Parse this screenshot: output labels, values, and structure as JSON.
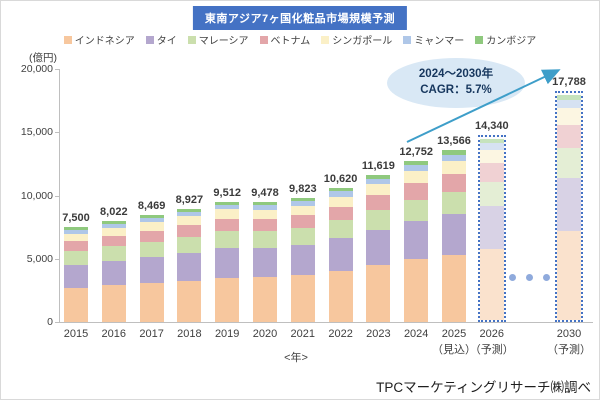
{
  "title": "東南アジア7ヶ国化粧品市場規模予測",
  "y_unit_label": "(億円)",
  "x_axis_title": "<年>",
  "footer_source": "TPCマーケティングリサーチ㈱調べ",
  "annotation": {
    "line1": "2024～2030年",
    "line2": "CAGR：5.7%"
  },
  "colors": {
    "title_bg": "#4472C4",
    "annotation_bg": "#D9E8F5",
    "annotation_text": "#17375E",
    "arrow": "#3E9EC9",
    "forecast_border": "#4472C4",
    "gap_dots": "#8FAADC",
    "axis": "#BFBFBF",
    "value_label_text": "#3B3B3B"
  },
  "chart_data": {
    "type": "bar",
    "stacked": true,
    "title": "東南アジア7ヶ国化粧品市場規模予測",
    "ylabel": "(億円)",
    "xlabel": "<年>",
    "ylim": [
      0,
      20000
    ],
    "yticks": [
      0,
      5000,
      10000,
      15000,
      20000
    ],
    "grid": false,
    "legend_position": "top",
    "categories": [
      {
        "label": "2015"
      },
      {
        "label": "2016"
      },
      {
        "label": "2017"
      },
      {
        "label": "2018"
      },
      {
        "label": "2019"
      },
      {
        "label": "2020"
      },
      {
        "label": "2021"
      },
      {
        "label": "2022"
      },
      {
        "label": "2023"
      },
      {
        "label": "2024"
      },
      {
        "label": "2025",
        "sublabel": "（見込）"
      },
      {
        "label": "2026",
        "sublabel": "（予測）",
        "forecast": true
      },
      {
        "label": "2030",
        "sublabel": "（予測）",
        "forecast": true
      }
    ],
    "totals": [
      7500,
      8022,
      8469,
      8927,
      9512,
      9478,
      9823,
      10620,
      11619,
      12752,
      13566,
      14340,
      17788
    ],
    "gap_dots_between": [
      "2026",
      "2030"
    ],
    "gap_dots_count": 3,
    "series": [
      {
        "name": "インドネシア",
        "color": "#F7C79E",
        "values": [
          2700,
          2900,
          3080,
          3270,
          3510,
          3540,
          3700,
          4050,
          4480,
          4960,
          5300,
          5620,
          7050
        ]
      },
      {
        "name": "タイ",
        "color": "#B4A7CE",
        "values": [
          1800,
          1950,
          2070,
          2200,
          2360,
          2330,
          2400,
          2570,
          2790,
          3040,
          3220,
          3400,
          4200
        ]
      },
      {
        "name": "マレーシア",
        "color": "#CBDFAD",
        "values": [
          1090,
          1150,
          1200,
          1260,
          1330,
          1300,
          1340,
          1430,
          1550,
          1690,
          1790,
          1890,
          2330
        ]
      },
      {
        "name": "ベトナム",
        "color": "#E3A6A9",
        "values": [
          780,
          830,
          880,
          930,
          990,
          980,
          1010,
          1090,
          1190,
          1310,
          1400,
          1480,
          1850
        ]
      },
      {
        "name": "シンガポール",
        "color": "#FBF0C7",
        "values": [
          620,
          650,
          680,
          705,
          740,
          730,
          750,
          800,
          870,
          950,
          1010,
          1060,
          1300
        ]
      },
      {
        "name": "ミャンマー",
        "color": "#AFC7E8",
        "values": [
          310,
          330,
          345,
          350,
          360,
          370,
          380,
          410,
          450,
          490,
          520,
          550,
          680
        ]
      },
      {
        "name": "カンボジア",
        "color": "#8FC97E",
        "values": [
          200,
          212,
          214,
          212,
          222,
          228,
          243,
          270,
          289,
          312,
          326,
          340,
          378
        ]
      }
    ]
  }
}
